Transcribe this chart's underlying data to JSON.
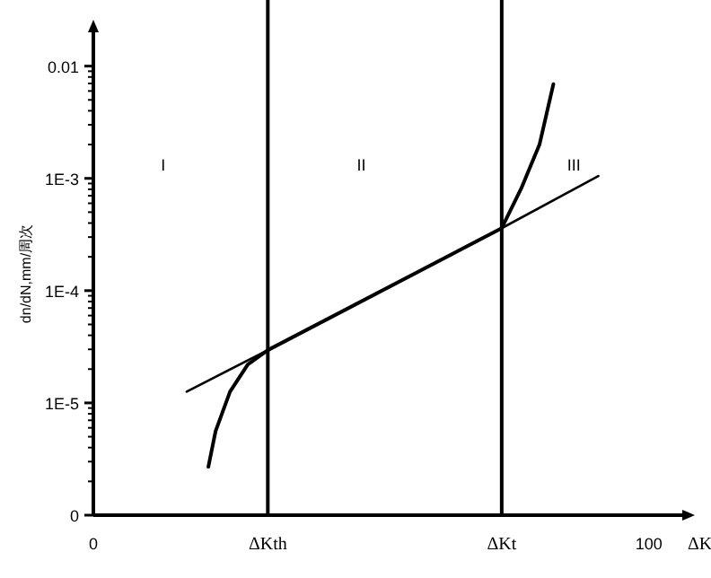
{
  "chart_data": {
    "type": "line",
    "xlabel": "ΔK",
    "ylabel": "dn/dN,mm/周次",
    "log": "y",
    "xlim": [
      0,
      106
    ],
    "ylim": [
      1e-06,
      0.02
    ],
    "xticks": [
      0,
      100
    ],
    "yticks": [
      {
        "value": 1e-06,
        "label": "0"
      },
      {
        "value": 1e-05,
        "label": "1E-5"
      },
      {
        "value": 0.0001,
        "label": "1E-4"
      },
      {
        "value": 0.001,
        "label": "1E-3"
      },
      0.01
    ],
    "series": [
      {
        "color": "#000000",
        "x": [
          16.8,
          31.4,
          73.5,
          90.9
        ],
        "values": [
          1.26e-05,
          2.95e-05,
          0.00036,
          0.00105
        ]
      },
      {
        "color": "#000000",
        "x": [
          20.7,
          22,
          24.6,
          27.8,
          31.4,
          73.5,
          77.0,
          80.3,
          82.8
        ],
        "values": [
          2.7e-06,
          5.6e-06,
          1.26e-05,
          2.2e-05,
          2.95e-05,
          0.00036,
          0.00081,
          0.002,
          0.0069
        ]
      }
    ],
    "ref_lines": [
      {
        "axis": "x",
        "value": 31.4,
        "label": "ΔKth"
      },
      {
        "axis": "x",
        "value": 73.5,
        "label": "ΔKt"
      }
    ],
    "annotations": [
      "I",
      "II",
      "III"
    ]
  }
}
